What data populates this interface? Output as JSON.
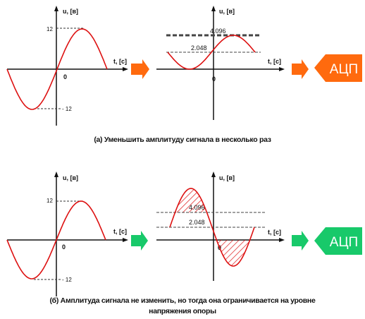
{
  "labels": {
    "u_axis": "u, [в]",
    "t_axis": "t, [с]",
    "zero": "0",
    "amp_pos": "12",
    "amp_neg": "- 12",
    "vref": "4.096",
    "half_ref": "2.048",
    "adc": "АЦП"
  },
  "captions": {
    "a": "(а) Уменьшить амплитуду сигнала в несколько раз",
    "b_line1": "(б) Амплитуда сигнала не изменить, но тогда она ограничивается на уровне",
    "b_line2": "напряжения опоры"
  },
  "colors": {
    "signal": "#dd1111",
    "arrow_a": "#ff6a0e",
    "arrow_b": "#18c96a",
    "adc_a": "#ff6a0e",
    "adc_b": "#18c96a",
    "axis": "#111111",
    "dashed": "#333333"
  },
  "icons": [
    "right-arrow-icon",
    "adc-tag-icon"
  ]
}
